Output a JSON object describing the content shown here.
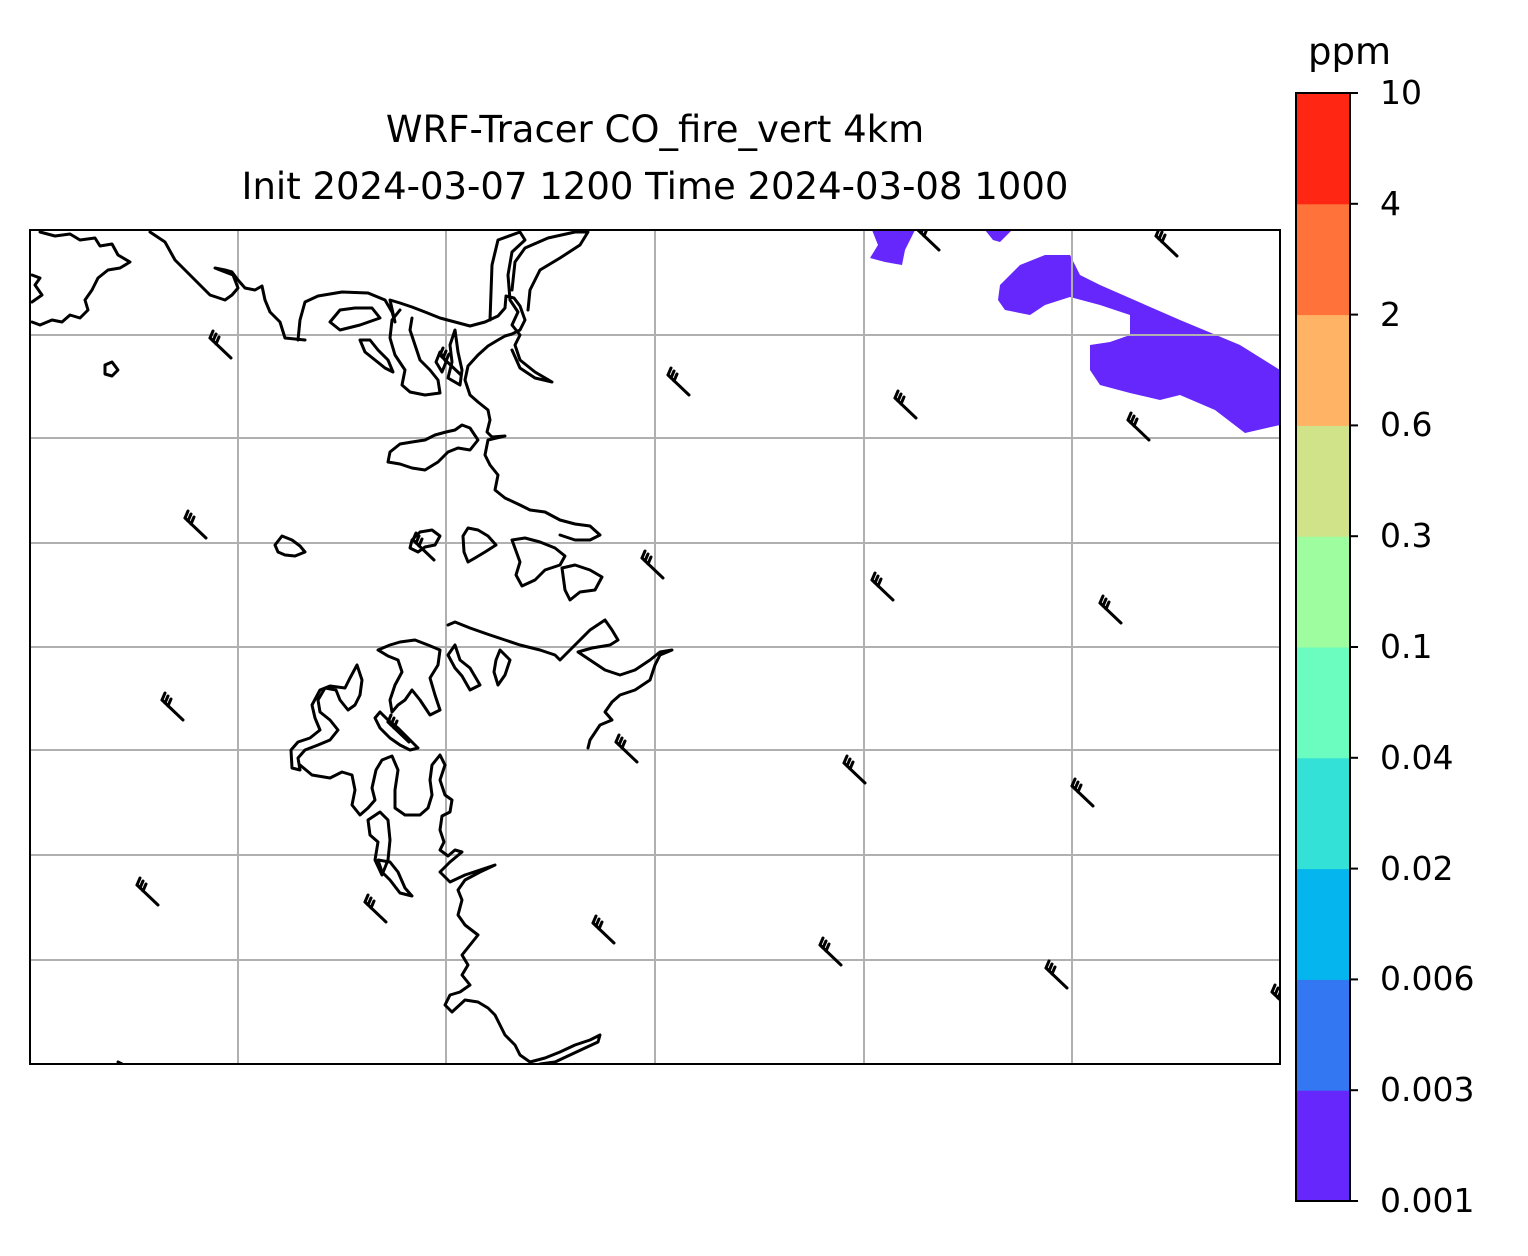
{
  "title": [
    "WRF-Tracer CO_fire_vert 4km",
    "Init 2024-03-07 1200 Time 2024-03-08 1000"
  ],
  "colorbar": {
    "unit": "ppm",
    "levels": [
      "0.001",
      "0.003",
      "0.006",
      "0.02",
      "0.04",
      "0.1",
      "0.3",
      "0.6",
      "2",
      "4",
      "10"
    ],
    "colors": [
      "#6527fb",
      "#3377f2",
      "#04b6ed",
      "#33e1d7",
      "#6bfdbf",
      "#9dfd9f",
      "#d1e389",
      "#ffb364",
      "#ff7239",
      "#ff2614"
    ]
  },
  "map": {
    "fill_color": "#6527fb",
    "gridline_color": "#b0b0b0",
    "coastline_color": "#000000",
    "wind_barb_icon": "wind-barb-icon"
  }
}
